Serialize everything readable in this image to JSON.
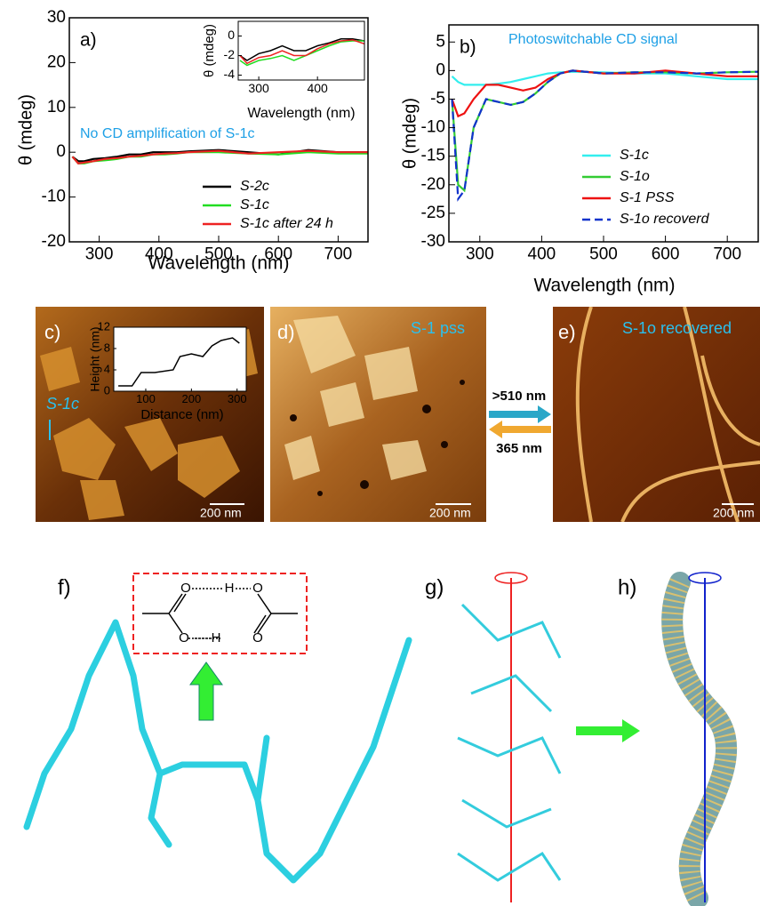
{
  "chart_data": [
    {
      "type": "line",
      "label": "a)",
      "annotation": "No CD amplification of S-1c",
      "xlabel": "Wavelength (nm)",
      "ylabel": "θ (mdeg)",
      "xlim": [
        250,
        750
      ],
      "xticks": [
        300,
        400,
        500,
        600,
        700
      ],
      "ylim": [
        -20,
        30
      ],
      "yticks": [
        -20,
        -10,
        0,
        10,
        20,
        30
      ],
      "x": [
        255,
        265,
        275,
        290,
        310,
        330,
        350,
        370,
        390,
        410,
        430,
        450,
        500,
        550,
        600,
        650,
        700,
        750
      ],
      "series": [
        {
          "name": "S-2c",
          "color": "#000000",
          "values": [
            -1,
            -2,
            -2,
            -1.5,
            -1.3,
            -1,
            -0.5,
            -0.5,
            0,
            0,
            0,
            0.2,
            0.5,
            0,
            -0.5,
            0.5,
            0,
            0
          ]
        },
        {
          "name": "S-1c",
          "color": "#22dd22",
          "values": [
            -1,
            -2.5,
            -2.5,
            -2,
            -1.8,
            -1.5,
            -1,
            -1,
            -0.5,
            -0.5,
            -0.3,
            0,
            0,
            -0.3,
            -0.5,
            0,
            -0.3,
            -0.3
          ]
        },
        {
          "name": "S-1c after 24 h",
          "color": "#ee2222",
          "values": [
            -1,
            -2.5,
            -2.3,
            -2,
            -1.5,
            -1.3,
            -1,
            -0.8,
            -0.5,
            -0.3,
            -0.2,
            0,
            0.3,
            -0.3,
            0,
            0.3,
            0,
            0
          ]
        }
      ]
    },
    {
      "type": "line",
      "label": "b)",
      "annotation": "Photoswitchable CD signal",
      "xlabel": "Wavelength (nm)",
      "ylabel": "θ (mdeg)",
      "xlim": [
        250,
        750
      ],
      "xticks": [
        300,
        400,
        500,
        600,
        700
      ],
      "ylim": [
        -30,
        8
      ],
      "yticks": [
        -30,
        -25,
        -20,
        -15,
        -10,
        -5,
        0,
        5
      ],
      "x": [
        255,
        265,
        275,
        290,
        310,
        330,
        350,
        370,
        390,
        410,
        430,
        450,
        500,
        550,
        600,
        650,
        700,
        750
      ],
      "series": [
        {
          "name": "S-1c",
          "color": "#33eeee",
          "values": [
            -1,
            -2,
            -2.5,
            -2.5,
            -2.5,
            -2.3,
            -2,
            -1.5,
            -1,
            -0.5,
            -0.3,
            -0.2,
            -0.3,
            -0.5,
            -0.5,
            -1,
            -1.5,
            -1.5
          ]
        },
        {
          "name": "S-1o",
          "color": "#33cc33",
          "values": [
            -5,
            -20,
            -21,
            -10,
            -5,
            -5.5,
            -6,
            -5.5,
            -4,
            -2,
            -0.5,
            0,
            -0.5,
            -0.3,
            -0.3,
            -0.5,
            -0.3,
            -0.2
          ]
        },
        {
          "name": "S-1 PSS",
          "color": "#ee1111",
          "values": [
            -5,
            -8,
            -7.5,
            -5,
            -2.5,
            -2.5,
            -3,
            -3.5,
            -3,
            -1.5,
            -0.5,
            0,
            -0.5,
            -0.5,
            0,
            -0.5,
            -1,
            -1
          ]
        },
        {
          "name": "S-1o recoverd",
          "color": "#1133cc",
          "dashed": true,
          "values": [
            -5,
            -22.5,
            -21,
            -10,
            -5,
            -5.5,
            -6,
            -5.5,
            -4,
            -2,
            -0.5,
            0,
            -0.5,
            -0.3,
            -0.3,
            -0.5,
            -0.3,
            -0.2
          ]
        }
      ]
    },
    {
      "type": "line",
      "xlabel": "Wavelength (nm)",
      "ylabel": "θ (mdeg)",
      "xlim": [
        265,
        480
      ],
      "xticks": [
        300,
        400
      ],
      "ylim": [
        -4.5,
        1.5
      ],
      "yticks": [
        -4,
        -2,
        0
      ],
      "x": [
        268,
        280,
        300,
        320,
        340,
        360,
        380,
        400,
        420,
        440,
        460,
        480
      ],
      "series": [
        {
          "color": "#000000",
          "values": [
            -2,
            -2.5,
            -1.8,
            -1.5,
            -1,
            -1.5,
            -1.5,
            -1,
            -0.7,
            -0.3,
            -0.3,
            -0.5
          ]
        },
        {
          "color": "#22dd22",
          "values": [
            -2.5,
            -3,
            -2.5,
            -2.3,
            -2,
            -2.5,
            -2,
            -1.5,
            -1,
            -0.6,
            -0.5,
            -0.5
          ]
        },
        {
          "color": "#ee2222",
          "values": [
            -2,
            -2.8,
            -2.2,
            -2,
            -1.5,
            -2,
            -2,
            -1.3,
            -0.8,
            -0.5,
            -0.4,
            -0.8
          ]
        }
      ]
    },
    {
      "type": "line",
      "xlabel": "Distance (nm)",
      "ylabel": "Height (nm)",
      "xlim": [
        30,
        320
      ],
      "xticks": [
        100,
        200,
        300
      ],
      "ylim": [
        0,
        12
      ],
      "yticks": [
        0,
        4,
        8,
        12
      ],
      "x": [
        40,
        70,
        90,
        120,
        160,
        175,
        200,
        225,
        245,
        265,
        290,
        305
      ],
      "series": [
        {
          "color": "#000000",
          "values": [
            1,
            1,
            3.5,
            3.5,
            4,
            6.5,
            7,
            6.5,
            8.5,
            9.5,
            10,
            9
          ]
        }
      ]
    }
  ],
  "panels": {
    "c": {
      "label": "c)",
      "tag": "S-1c",
      "scale": "200 nm"
    },
    "d": {
      "label": "d)",
      "tag": "S-1 pss",
      "scale": "200 nm"
    },
    "e": {
      "label": "e)",
      "tag": "S-1o recovered",
      "scale": "200 nm"
    },
    "arrows": [
      ">510 nm",
      "365 nm"
    ],
    "f": {
      "label": "f)",
      "atoms": [
        "O",
        "H",
        "O",
        "O",
        "H",
        "O"
      ]
    },
    "g": {
      "label": "g)"
    },
    "h": {
      "label": "h)"
    }
  }
}
